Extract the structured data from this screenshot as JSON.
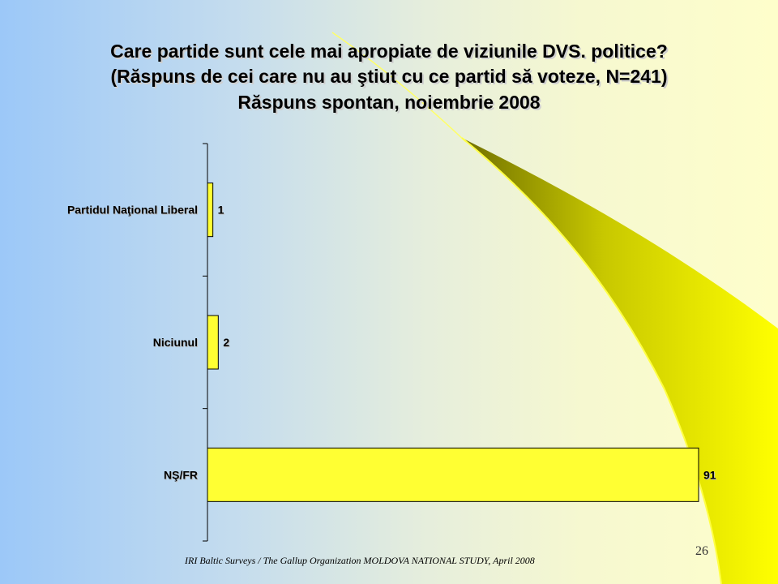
{
  "slide": {
    "title_lines": [
      "Care partide sunt cele mai apropiate de viziunile DVS. politice?",
      "(Răspuns de cei care nu au ştiut cu ce partid să voteze, N=241)",
      "Răspuns spontan, noiembrie 2008"
    ],
    "footer": "IRI  Baltic Surveys / The Gallup Organization  MOLDOVA  NATIONAL  STUDY,  April 2008",
    "page_number": "26",
    "colors": {
      "bar_fill": "#ffff33",
      "bar_stroke": "#000000",
      "accent_swoosh": "#ffff00",
      "swoosh_shadow": "#8a8a00"
    }
  },
  "chart_data": {
    "type": "bar",
    "orientation": "horizontal",
    "categories": [
      "Partidul Naţional Liberal",
      "Niciunul",
      "NŞ/FR"
    ],
    "values": [
      1,
      2,
      91
    ],
    "data_labels": [
      "1",
      "2",
      "91"
    ],
    "xlim": [
      0,
      100
    ],
    "grid": false,
    "legend": "none"
  }
}
